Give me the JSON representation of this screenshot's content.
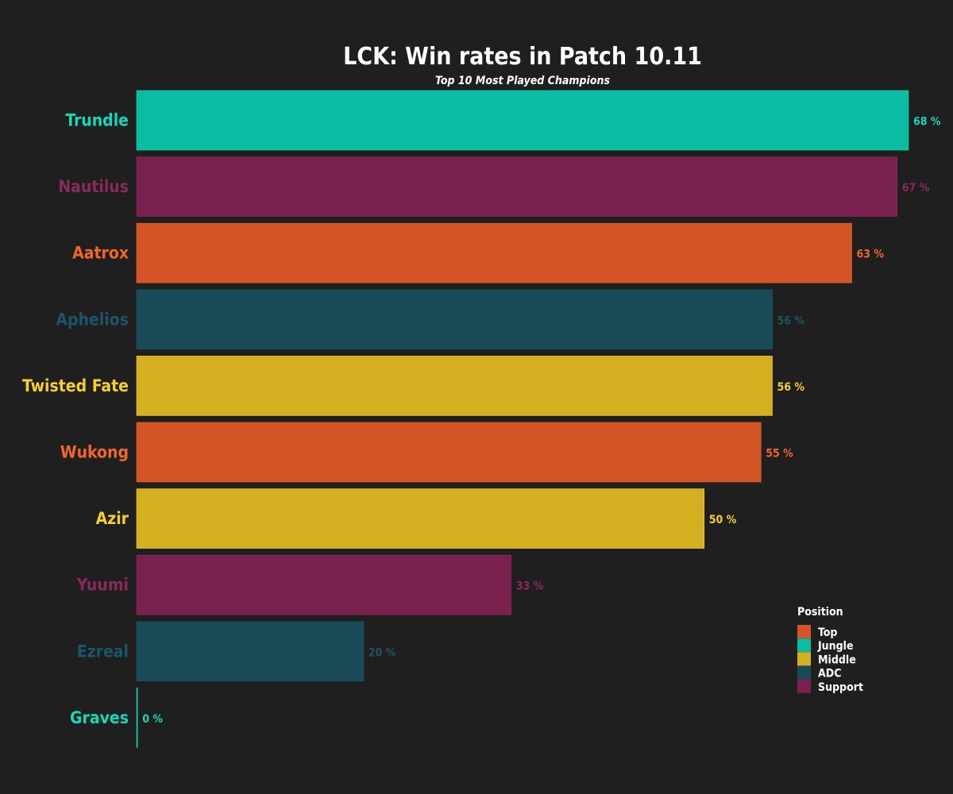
{
  "chart_data": {
    "type": "bar",
    "orientation": "horizontal",
    "title": "LCK: Win rates in Patch 10.11",
    "subtitle": "Top 10 Most Played Champions",
    "xlabel": "",
    "ylabel": "",
    "xlim": [
      0,
      68
    ],
    "grid": false,
    "value_suffix": " %",
    "categories": [
      "Trundle",
      "Nautilus",
      "Aatrox",
      "Aphelios",
      "Twisted Fate",
      "Wukong",
      "Azir",
      "Yuumi",
      "Ezreal",
      "Graves"
    ],
    "values": [
      68,
      67,
      63,
      56,
      56,
      55,
      50,
      33,
      20,
      0
    ],
    "positions": [
      "Jungle",
      "Support",
      "Top",
      "ADC",
      "Middle",
      "Top",
      "Middle",
      "Support",
      "ADC",
      "Jungle"
    ],
    "legend": {
      "title": "Position",
      "placement": "bottom-right",
      "entries": [
        {
          "name": "Top",
          "color": "#d35426"
        },
        {
          "name": "Jungle",
          "color": "#0abda0"
        },
        {
          "name": "Middle",
          "color": "#d4b020"
        },
        {
          "name": "ADC",
          "color": "#184a57"
        },
        {
          "name": "Support",
          "color": "#7a214f"
        }
      ]
    },
    "label_colors": {
      "Top": "#f2662a",
      "Jungle": "#16d8b6",
      "Middle": "#f7cf2c",
      "ADC": "#1c5567",
      "Support": "#8a2a5c"
    },
    "background_color": "#1f1f1f"
  }
}
